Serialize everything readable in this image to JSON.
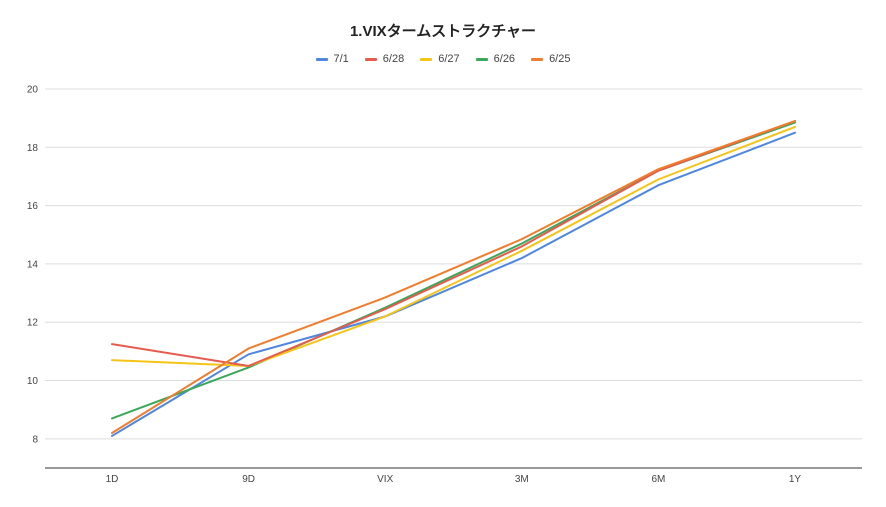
{
  "chart_data": {
    "type": "line",
    "title": "1.VIXタームストラクチャー",
    "xlabel": "",
    "ylabel": "",
    "categories": [
      "1D",
      "9D",
      "VIX",
      "3M",
      "6M",
      "1Y"
    ],
    "ylim": [
      7,
      20
    ],
    "yticks": [
      8,
      10,
      12,
      14,
      16,
      18,
      20
    ],
    "grid": true,
    "legend_position": "top",
    "series": [
      {
        "name": "7/1",
        "color": "#4f86e0",
        "values": [
          8.1,
          10.9,
          12.2,
          14.2,
          16.7,
          18.5
        ]
      },
      {
        "name": "6/28",
        "color": "#e65b4e",
        "values": [
          11.25,
          10.5,
          12.45,
          14.6,
          17.2,
          18.9
        ]
      },
      {
        "name": "6/27",
        "color": "#f4c416",
        "values": [
          10.7,
          10.5,
          12.2,
          14.45,
          16.9,
          18.7
        ]
      },
      {
        "name": "6/26",
        "color": "#3aa85a",
        "values": [
          8.7,
          10.45,
          12.5,
          14.7,
          17.2,
          18.85
        ]
      },
      {
        "name": "6/25",
        "color": "#f07c2c",
        "values": [
          8.2,
          11.1,
          12.85,
          14.85,
          17.25,
          18.9
        ]
      }
    ]
  }
}
